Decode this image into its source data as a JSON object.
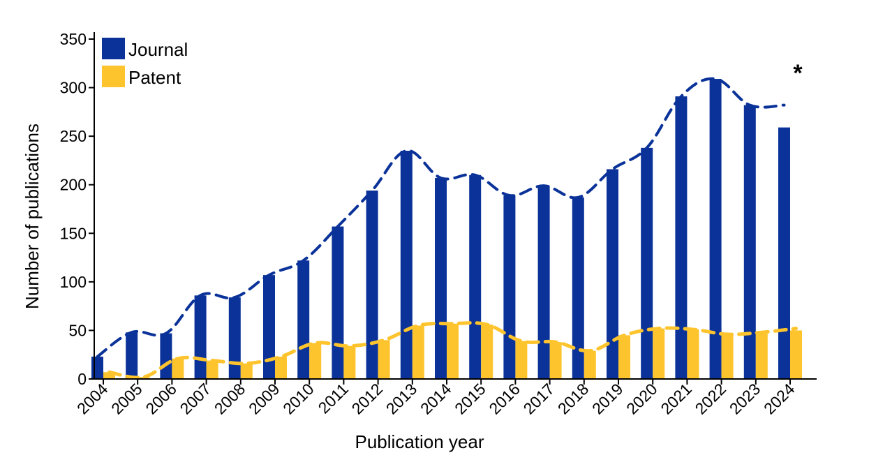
{
  "chart_data": {
    "type": "bar",
    "xlabel": "Publication year",
    "ylabel": "Number of publications",
    "ylim": [
      0,
      350
    ],
    "yticks": [
      "0",
      "50",
      "100",
      "150",
      "200",
      "250",
      "300",
      "350"
    ],
    "categories": [
      "2004",
      "2005",
      "2006",
      "2007",
      "2008",
      "2009",
      "2010",
      "2011",
      "2012",
      "2013",
      "2014",
      "2015",
      "2016",
      "2017",
      "2018",
      "2019",
      "2020",
      "2021",
      "2022",
      "2023",
      "2024"
    ],
    "series": [
      {
        "name": "Journal",
        "color": "#0a3299",
        "values": [
          23,
          48,
          47,
          86,
          84,
          107,
          122,
          157,
          194,
          235,
          207,
          210,
          189,
          199,
          187,
          216,
          238,
          291,
          309,
          282,
          259
        ],
        "trend": [
          23,
          48,
          47,
          86,
          84,
          107,
          122,
          157,
          194,
          235,
          207,
          210,
          189,
          199,
          187,
          216,
          238,
          291,
          309,
          282,
          282
        ]
      },
      {
        "name": "Patent",
        "color": "#fec42d",
        "values": [
          7,
          2,
          21,
          19,
          16,
          23,
          37,
          34,
          40,
          55,
          57,
          56,
          39,
          38,
          29,
          45,
          52,
          51,
          46,
          48,
          50
        ],
        "trend": [
          7,
          2,
          21,
          19,
          16,
          23,
          37,
          34,
          40,
          55,
          57,
          56,
          39,
          38,
          29,
          45,
          52,
          51,
          46,
          48,
          52
        ]
      }
    ],
    "annotation": "*",
    "legend_position": "top-left"
  }
}
